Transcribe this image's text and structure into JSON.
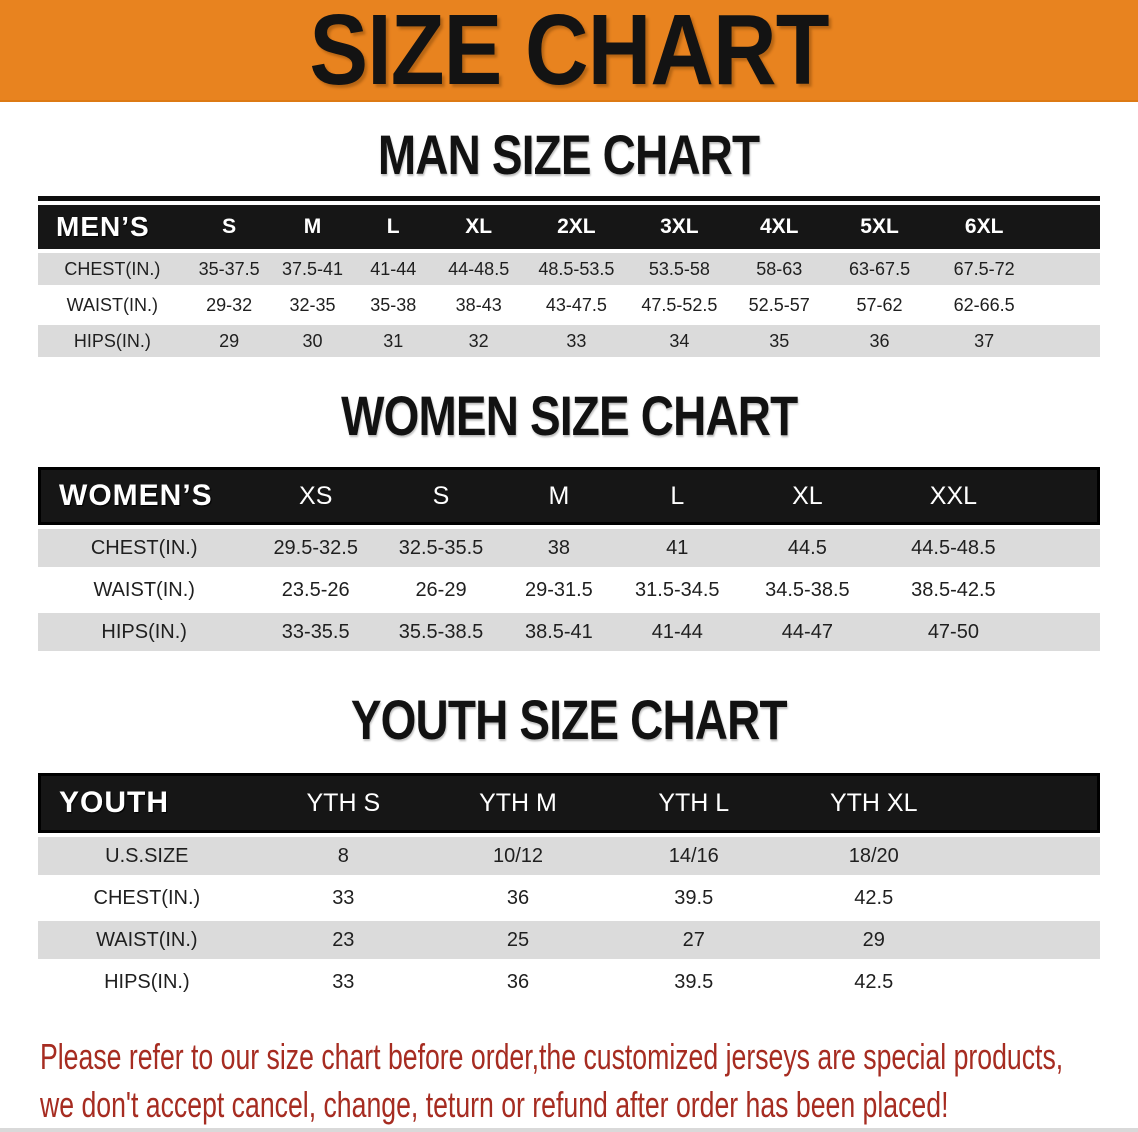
{
  "banner": {
    "title": "SIZE CHART",
    "bg_color": "#E8831F",
    "text_color": "#131313"
  },
  "chart_data": [
    {
      "type": "table",
      "key": "men",
      "title": "MAN SIZE CHART",
      "header_label": "MEN’S",
      "columns": [
        "S",
        "M",
        "L",
        "XL",
        "2XL",
        "3XL",
        "4XL",
        "5XL",
        "6XL"
      ],
      "rows": [
        {
          "label": "CHEST(IN.)",
          "values": [
            "35-37.5",
            "37.5-41",
            "41-44",
            "44-48.5",
            "48.5-53.5",
            "53.5-58",
            "58-63",
            "63-67.5",
            "67.5-72"
          ]
        },
        {
          "label": "WAIST(IN.)",
          "values": [
            "29-32",
            "32-35",
            "35-38",
            "38-43",
            "43-47.5",
            "47.5-52.5",
            "52.5-57",
            "57-62",
            "62-66.5"
          ]
        },
        {
          "label": "HIPS(IN.)",
          "values": [
            "29",
            "30",
            "31",
            "32",
            "33",
            "34",
            "35",
            "36",
            "37"
          ]
        }
      ]
    },
    {
      "type": "table",
      "key": "women",
      "title": "WOMEN SIZE CHART",
      "header_label": "WOMEN’S",
      "columns": [
        "XS",
        "S",
        "M",
        "L",
        "XL",
        "XXL"
      ],
      "rows": [
        {
          "label": "CHEST(IN.)",
          "values": [
            "29.5-32.5",
            "32.5-35.5",
            "38",
            "41",
            "44.5",
            "44.5-48.5"
          ]
        },
        {
          "label": "WAIST(IN.)",
          "values": [
            "23.5-26",
            "26-29",
            "29-31.5",
            "31.5-34.5",
            "34.5-38.5",
            "38.5-42.5"
          ]
        },
        {
          "label": "HIPS(IN.)",
          "values": [
            "33-35.5",
            "35.5-38.5",
            "38.5-41",
            "41-44",
            "44-47",
            "47-50"
          ]
        }
      ]
    },
    {
      "type": "table",
      "key": "youth",
      "title": "YOUTH SIZE CHART",
      "header_label": "YOUTH",
      "columns": [
        "YTH S",
        "YTH M",
        "YTH L",
        "YTH XL"
      ],
      "rows": [
        {
          "label": "U.S.SIZE",
          "values": [
            "8",
            "10/12",
            "14/16",
            "18/20"
          ]
        },
        {
          "label": "CHEST(IN.)",
          "values": [
            "33",
            "36",
            "39.5",
            "42.5"
          ]
        },
        {
          "label": "WAIST(IN.)",
          "values": [
            "23",
            "25",
            "27",
            "29"
          ]
        },
        {
          "label": "HIPS(IN.)",
          "values": [
            "33",
            "36",
            "39.5",
            "42.5"
          ]
        }
      ]
    }
  ],
  "footer": {
    "line1": "Please refer to our size chart before order,the customized jerseys are special products,",
    "line2": "we don't accept cancel, change, teturn or refund after order has been placed!",
    "color": "#A62C21"
  },
  "colors": {
    "header_row_bg": "#161616",
    "shaded_row_bg": "#DBDBDB",
    "plain_row_bg": "#FFFFFF"
  }
}
